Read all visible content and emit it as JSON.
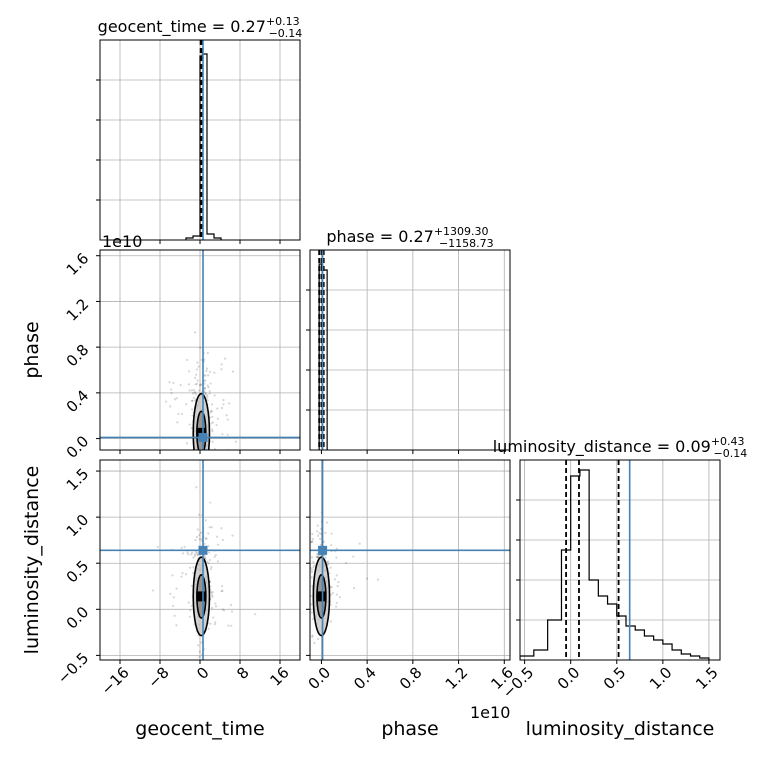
{
  "chart_data": {
    "type": "corner",
    "parameters": [
      "geocent_time",
      "phase",
      "luminosity_distance"
    ],
    "truth_color": "#4682b4",
    "contour_color": "#000000",
    "grid": true,
    "titles": [
      {
        "name": "geocent_time",
        "median": "0.27",
        "plus": "+0.13",
        "minus": "−0.14"
      },
      {
        "name": "phase",
        "median": "0.27",
        "plus": "+1309.30",
        "minus": "−1158.73"
      },
      {
        "name": "luminosity_distance",
        "median": "0.09",
        "plus": "+0.43",
        "minus": "−0.14"
      }
    ],
    "axes": {
      "geocent_time": {
        "label": "geocent_time",
        "range": [
          -20,
          20
        ],
        "ticks": [
          -16,
          -8,
          0,
          8,
          16
        ],
        "tick_labels": [
          "−16",
          "−8",
          "0",
          "8",
          "16"
        ],
        "truth": 0.6,
        "median": 0.27,
        "q16": 0.13,
        "q84": 0.4
      },
      "phase": {
        "label": "phase",
        "range": [
          -0.1,
          1.65
        ],
        "ticks": [
          0.0,
          0.4,
          0.8,
          1.2,
          1.6
        ],
        "tick_labels": [
          "0.0",
          "0.4",
          "0.8",
          "1.2",
          "1.6"
        ],
        "offset_label": "1e10",
        "truth": 0.01,
        "median": 0.0,
        "q16": -0.02,
        "q84": 0.02
      },
      "luminosity_distance": {
        "label": "luminosity_distance",
        "range": [
          -0.55,
          1.62
        ],
        "ticks": [
          -0.5,
          0.0,
          0.5,
          1.0,
          1.5
        ],
        "tick_labels": [
          "−0.5",
          "0.0",
          "0.5",
          "1.0",
          "1.5"
        ],
        "truth": 0.64,
        "median": 0.09,
        "q16": -0.05,
        "q84": 0.52
      }
    },
    "histograms": {
      "geocent_time": {
        "edges": [
          -2.8,
          -1.4,
          0.0,
          0.45,
          1.4,
          2.8,
          4.2
        ],
        "counts": [
          0.01,
          0.02,
          0.92,
          0.93,
          0.03,
          0.01
        ]
      },
      "phase": {
        "edges": [
          -0.02,
          0.0,
          0.05,
          0.06
        ],
        "counts": [
          0.93,
          0.9,
          0.0
        ]
      },
      "luminosity_distance": {
        "edges": [
          -0.55,
          -0.4,
          -0.25,
          -0.1,
          0.0,
          0.1,
          0.2,
          0.3,
          0.4,
          0.5,
          0.6,
          0.7,
          0.8,
          0.9,
          1.0,
          1.1,
          1.2,
          1.3,
          1.4,
          1.5
        ],
        "counts": [
          0.02,
          0.05,
          0.2,
          0.55,
          0.92,
          0.95,
          0.4,
          0.32,
          0.28,
          0.22,
          0.17,
          0.15,
          0.12,
          0.1,
          0.08,
          0.05,
          0.03,
          0.02,
          0.01
        ]
      }
    },
    "marginal_ylim": [
      0,
      1.0
    ]
  }
}
